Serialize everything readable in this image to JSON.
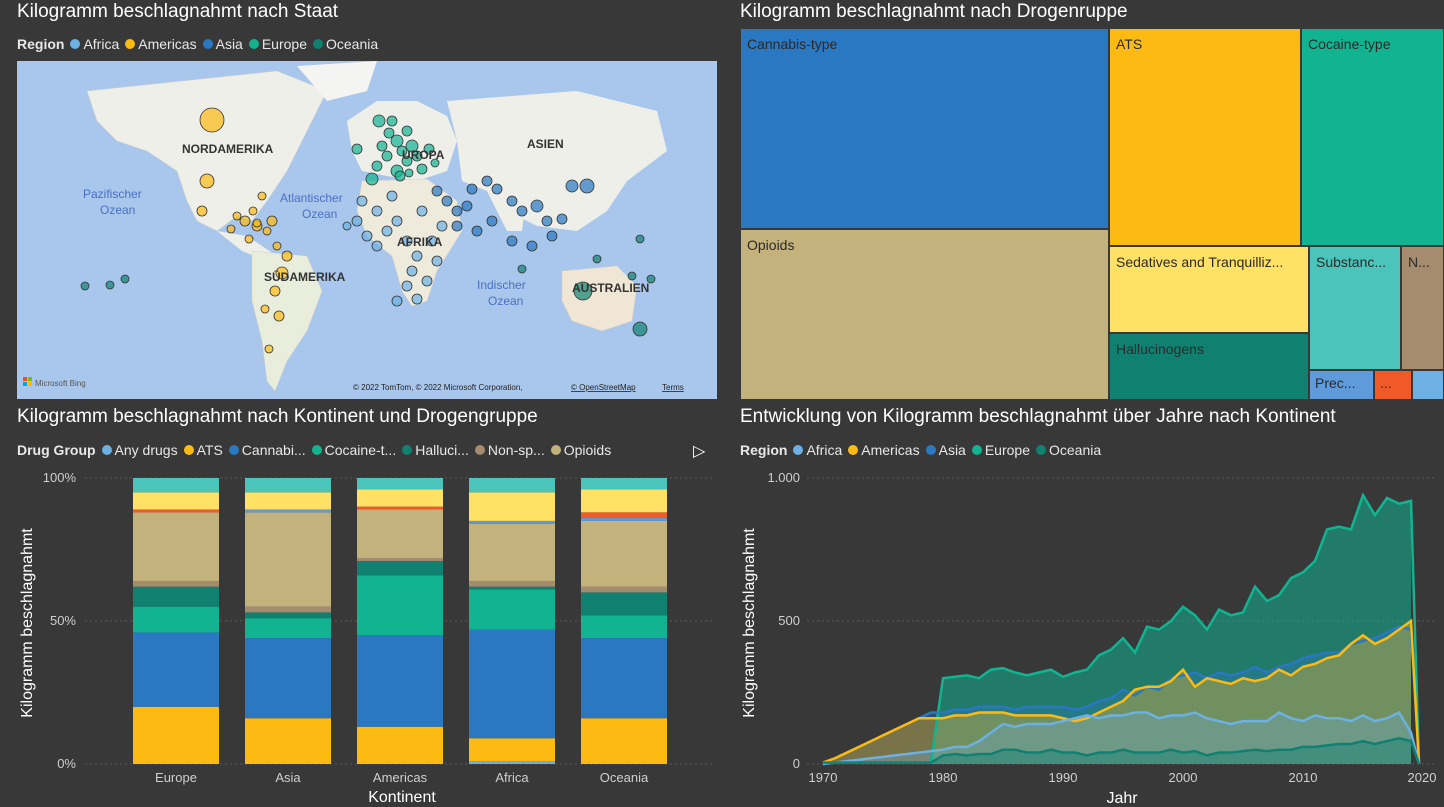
{
  "colors": {
    "Africa": "#6CB0E4",
    "Americas": "#FDBA13",
    "Asia": "#2A77C2",
    "Europe": "#11B391",
    "Oceania": "#108170",
    "Any drugs": "#6CB0E4",
    "ATS": "#FDBA13",
    "Cannabis": "#2A77C2",
    "Cocaine": "#11B391",
    "Hallucinogens": "#108170",
    "Non-specified": "#A58C6F",
    "Opioids": "#C4B27D",
    "Sedatives": "#FFE166",
    "Substances": "#4BC5BB",
    "Precursors": "#5F9BDA",
    "Other": "#EF5A28"
  },
  "map": {
    "title": "Kilogramm beschlagnahmt nach Staat",
    "legend_title": "Region",
    "legend": [
      "Africa",
      "Americas",
      "Asia",
      "Europe",
      "Oceania"
    ],
    "labels": {
      "na": "NORDAMERIKA",
      "sa": "SÜDAMERIKA",
      "eu": "UROPA",
      "asia": "ASIEN",
      "afr": "AFRIKA",
      "aus": "AUSTRALIEN",
      "pac1": "Pazifischer",
      "pac2": "Ozean",
      "atl1": "Atlantischer",
      "atl2": "Ozean",
      "ind1": "Indischer",
      "ind2": "Ozean"
    },
    "bing": "Microsoft Bing",
    "copyright": "© 2022 TomTom, © 2022 Microsoft Corporation,",
    "osm": "© OpenStreetMap",
    "terms": "Terms"
  },
  "treemap": {
    "title": "Kilogramm beschlagnahmt nach Drogenruppe",
    "cells": [
      {
        "label": "Cannabis-type",
        "color": "Cannabis"
      },
      {
        "label": "ATS",
        "color": "ATS"
      },
      {
        "label": "Cocaine-type",
        "color": "Cocaine"
      },
      {
        "label": "Opioids",
        "color": "Opioids"
      },
      {
        "label": "Sedatives and Tranquilliz...",
        "color": "Sedatives"
      },
      {
        "label": "Substanc...",
        "color": "Substances"
      },
      {
        "label": "N...",
        "color": "Non-specified"
      },
      {
        "label": "Hallucinogens",
        "color": "Hallucinogens"
      },
      {
        "label": "Prec...",
        "color": "Precursors"
      },
      {
        "label": "...",
        "color": "Other"
      },
      {
        "label": "",
        "color": "Any drugs"
      }
    ]
  },
  "stacked": {
    "title": "Kilogramm beschlagnahmt nach Kontinent und Drogengruppe",
    "legend_title": "Drug Group",
    "legend": [
      {
        "label": "Any drugs",
        "color": "Any drugs"
      },
      {
        "label": "ATS",
        "color": "ATS"
      },
      {
        "label": "Cannabi...",
        "color": "Cannabis"
      },
      {
        "label": "Cocaine-t...",
        "color": "Cocaine"
      },
      {
        "label": "Halluci...",
        "color": "Hallucinogens"
      },
      {
        "label": "Non-sp...",
        "color": "Non-specified"
      },
      {
        "label": "Opioids",
        "color": "Opioids"
      }
    ],
    "nav_arrow": "▷",
    "ylabel": "Kilogramm beschlagnahmt",
    "xlabel": "Kontinent",
    "yticks": [
      "100%",
      "50%",
      "0%"
    ]
  },
  "line": {
    "title": "Entwicklung von Kilogramm beschlagnahmt über Jahre nach Kontinent",
    "legend_title": "Region",
    "legend": [
      "Africa",
      "Americas",
      "Asia",
      "Europe",
      "Oceania"
    ],
    "ylabel": "Kilogramm beschlagnahmt",
    "xlabel": "Jahr",
    "yticks": [
      "1.000",
      "500",
      "0"
    ],
    "xticks": [
      "1970",
      "1980",
      "1990",
      "2000",
      "2010",
      "2020"
    ]
  },
  "chart_data": [
    {
      "type": "bar",
      "stacked": "percent",
      "categories": [
        "Europe",
        "Asia",
        "Americas",
        "Africa",
        "Oceania"
      ],
      "xlabel": "Kontinent",
      "ylabel": "Kilogramm beschlagnahmt",
      "ylim": [
        0,
        100
      ],
      "series": [
        {
          "name": "Any drugs",
          "values": [
            0,
            0,
            0,
            1,
            0
          ]
        },
        {
          "name": "ATS",
          "values": [
            20,
            16,
            13,
            8,
            16
          ]
        },
        {
          "name": "Cannabis-type",
          "values": [
            26,
            28,
            32,
            38,
            28
          ]
        },
        {
          "name": "Cocaine-type",
          "values": [
            9,
            7,
            21,
            14,
            8
          ]
        },
        {
          "name": "Hallucinogens",
          "values": [
            7,
            2,
            5,
            1,
            8
          ]
        },
        {
          "name": "Non-specified",
          "values": [
            2,
            2,
            1,
            2,
            2
          ]
        },
        {
          "name": "Opioids",
          "values": [
            24,
            33,
            17,
            20,
            23
          ]
        },
        {
          "name": "Precursors",
          "values": [
            0,
            1,
            0,
            1,
            1
          ]
        },
        {
          "name": "Other",
          "values": [
            1,
            0,
            1,
            0,
            2
          ]
        },
        {
          "name": "Sedatives",
          "values": [
            6,
            6,
            6,
            10,
            8
          ]
        },
        {
          "name": "Substances",
          "values": [
            5,
            5,
            4,
            5,
            4
          ]
        }
      ]
    },
    {
      "type": "area",
      "x": [
        1970,
        1971,
        1972,
        1973,
        1974,
        1975,
        1976,
        1977,
        1978,
        1979,
        1980,
        1981,
        1982,
        1983,
        1984,
        1985,
        1986,
        1987,
        1988,
        1989,
        1990,
        1991,
        1992,
        1993,
        1994,
        1995,
        1996,
        1997,
        1998,
        1999,
        2000,
        2001,
        2002,
        2003,
        2004,
        2005,
        2006,
        2007,
        2008,
        2009,
        2010,
        2011,
        2012,
        2013,
        2014,
        2015,
        2016,
        2017,
        2018,
        2019
      ],
      "xlabel": "Jahr",
      "ylabel": "Kilogramm beschlagnahmt",
      "ylim": [
        0,
        1000
      ],
      "series": [
        {
          "name": "Europe",
          "values": [
            5,
            5,
            5,
            5,
            5,
            5,
            5,
            5,
            5,
            5,
            300,
            305,
            310,
            300,
            330,
            335,
            320,
            310,
            320,
            330,
            305,
            320,
            330,
            380,
            400,
            440,
            390,
            480,
            470,
            500,
            550,
            520,
            470,
            540,
            520,
            530,
            620,
            570,
            590,
            650,
            670,
            710,
            820,
            830,
            820,
            940,
            870,
            930,
            910,
            920
          ]
        },
        {
          "name": "Asia",
          "values": [
            5,
            20,
            40,
            60,
            80,
            100,
            120,
            140,
            160,
            180,
            180,
            190,
            190,
            200,
            200,
            200,
            190,
            200,
            200,
            200,
            200,
            190,
            200,
            220,
            230,
            260,
            240,
            270,
            260,
            300,
            310,
            320,
            300,
            320,
            310,
            320,
            340,
            320,
            340,
            350,
            370,
            380,
            390,
            390,
            420,
            430,
            440,
            460,
            480,
            470
          ]
        },
        {
          "name": "Americas",
          "values": [
            5,
            20,
            40,
            60,
            80,
            100,
            120,
            140,
            160,
            160,
            160,
            170,
            170,
            180,
            180,
            180,
            170,
            170,
            170,
            170,
            160,
            150,
            160,
            180,
            200,
            220,
            260,
            270,
            270,
            290,
            330,
            270,
            300,
            290,
            280,
            300,
            290,
            300,
            330,
            310,
            340,
            350,
            370,
            380,
            420,
            450,
            420,
            440,
            470,
            500
          ]
        },
        {
          "name": "Africa",
          "values": [
            0,
            5,
            10,
            15,
            20,
            25,
            30,
            35,
            40,
            45,
            50,
            60,
            60,
            80,
            110,
            140,
            130,
            140,
            140,
            140,
            150,
            160,
            170,
            160,
            170,
            170,
            180,
            180,
            160,
            170,
            170,
            180,
            160,
            150,
            140,
            150,
            150,
            150,
            180,
            160,
            150,
            170,
            160,
            160,
            150,
            170,
            150,
            160,
            180,
            110
          ]
        },
        {
          "name": "Oceania",
          "values": [
            5,
            5,
            5,
            5,
            5,
            5,
            5,
            5,
            5,
            5,
            30,
            35,
            30,
            35,
            35,
            50,
            50,
            40,
            40,
            50,
            40,
            40,
            30,
            40,
            40,
            50,
            40,
            40,
            40,
            50,
            40,
            45,
            30,
            40,
            40,
            45,
            50,
            45,
            50,
            50,
            60,
            60,
            65,
            70,
            70,
            80,
            70,
            80,
            90,
            80
          ]
        }
      ]
    }
  ]
}
